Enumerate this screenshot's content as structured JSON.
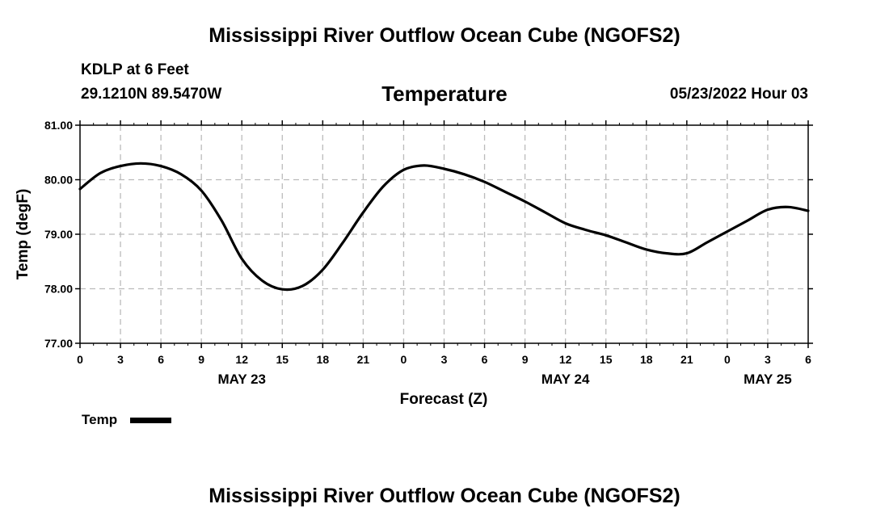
{
  "header": {
    "title": "Mississippi River Outflow Ocean Cube (NGOFS2)",
    "station": "KDLP at 6 Feet",
    "coords": "29.1210N  89.5470W",
    "datetime": "05/23/2022 Hour 03"
  },
  "footer": {
    "title": "Mississippi River Outflow Ocean Cube (NGOFS2)"
  },
  "chart_data": {
    "type": "line",
    "title": "Temperature",
    "xlabel": "Forecast (Z)",
    "ylabel": "Temp (degF)",
    "ylim": [
      77.0,
      81.0
    ],
    "xlim": [
      0,
      54
    ],
    "x_unit": "hours since 05/23 00Z",
    "yticks": [
      "77.00",
      "78.00",
      "79.00",
      "80.00",
      "81.00"
    ],
    "ytick_values": [
      77,
      78,
      79,
      80,
      81
    ],
    "xtick_hours": [
      0,
      3,
      6,
      9,
      12,
      15,
      18,
      21,
      24,
      27,
      30,
      33,
      36,
      39,
      42,
      45,
      48,
      51,
      54
    ],
    "xtick_labels": [
      "0",
      "3",
      "6",
      "9",
      "12",
      "15",
      "18",
      "21",
      "0",
      "3",
      "6",
      "9",
      "12",
      "15",
      "18",
      "21",
      "0",
      "3",
      "6"
    ],
    "day_labels": [
      {
        "hour": 12,
        "label": "MAY 23"
      },
      {
        "hour": 36,
        "label": "MAY 24"
      },
      {
        "hour": 51,
        "label": "MAY 25"
      }
    ],
    "grid": true,
    "legend": {
      "position": "bottom-left",
      "label": "Temp"
    },
    "series": [
      {
        "name": "Temp",
        "color": "#000000",
        "x": [
          0,
          1.5,
          3,
          4.5,
          6,
          7.5,
          9,
          10.5,
          12,
          13.5,
          15,
          16.5,
          18,
          19.5,
          21,
          22.5,
          24,
          25.5,
          27,
          28.5,
          30,
          31.5,
          33,
          34.5,
          36,
          37.5,
          39,
          40.5,
          42,
          43.5,
          45,
          46.5,
          48,
          49.5,
          51,
          52.5,
          54
        ],
        "values": [
          79.83,
          80.12,
          80.25,
          80.3,
          80.25,
          80.1,
          79.8,
          79.25,
          78.55,
          78.15,
          77.99,
          78.05,
          78.35,
          78.85,
          79.4,
          79.88,
          80.18,
          80.26,
          80.2,
          80.1,
          79.96,
          79.78,
          79.6,
          79.4,
          79.2,
          79.08,
          78.98,
          78.85,
          78.72,
          78.65,
          78.65,
          78.85,
          79.05,
          79.25,
          79.45,
          79.5,
          79.43
        ]
      }
    ]
  }
}
